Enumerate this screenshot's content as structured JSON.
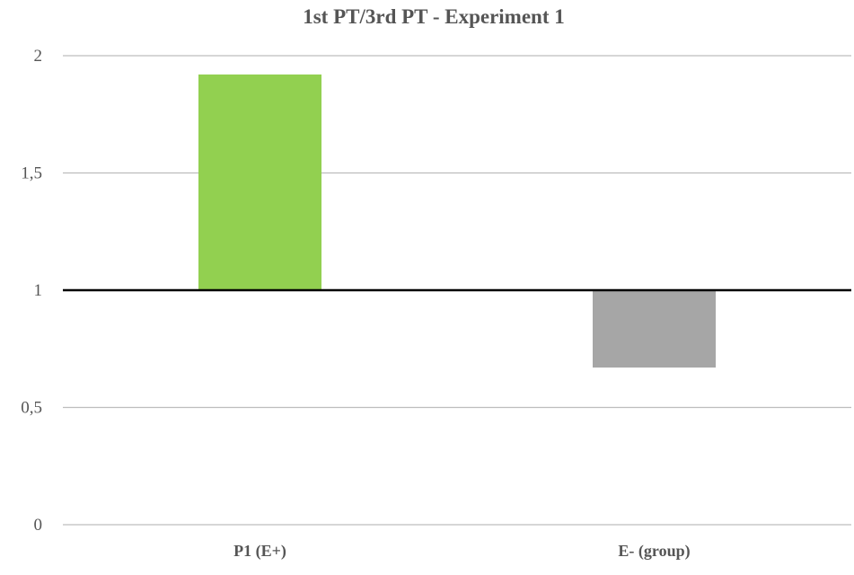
{
  "chart_data": {
    "type": "bar",
    "title": "1st PT/3rd PT - Experiment 1",
    "xlabel": "",
    "ylabel": "",
    "categories": [
      "P1 (E+)",
      "E- (group)"
    ],
    "values": [
      1.92,
      0.67
    ],
    "bar_colors": [
      "#92d050",
      "#a6a6a6"
    ],
    "baseline_value": 1,
    "ylim": [
      0,
      2
    ],
    "yticks": [
      0,
      0.5,
      1,
      1.5,
      2
    ],
    "ytick_labels": [
      "0",
      "0,5",
      "1",
      "1,5",
      "2"
    ],
    "grid": true,
    "legend": "none"
  }
}
